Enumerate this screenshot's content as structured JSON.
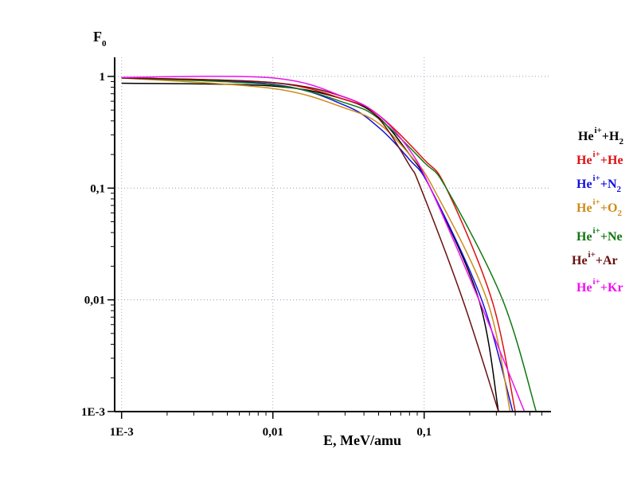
{
  "chart_data": {
    "type": "line",
    "title": "",
    "xlabel": "E, MeV/amu",
    "ylabel": {
      "main": "F",
      "sub": "0"
    },
    "xscale": "log",
    "yscale": "log",
    "xlim": [
      0.00085,
      0.69
    ],
    "ylim": [
      0.001,
      1.5
    ],
    "x_ticks": [
      {
        "v": 0.001,
        "label": "1E-3"
      },
      {
        "v": 0.01,
        "label": "0,01"
      },
      {
        "v": 0.1,
        "label": "0,1"
      }
    ],
    "y_ticks": [
      {
        "v": 1,
        "label": "1"
      },
      {
        "v": 0.1,
        "label": "0,1"
      },
      {
        "v": 0.01,
        "label": "0,01"
      },
      {
        "v": 0.001,
        "label": "1E-3"
      }
    ],
    "grid": true,
    "legend_position": "right",
    "series": [
      {
        "name": "He i+ + H2",
        "ion": "He",
        "charge": "i+",
        "target": "+H",
        "sub": "2",
        "color": "#000000",
        "x": [
          0.001,
          0.01,
          0.03,
          0.05,
          0.08,
          0.11,
          0.23,
          0.31
        ],
        "y": [
          0.87,
          0.82,
          0.62,
          0.43,
          0.2,
          0.1,
          0.01,
          0.001
        ]
      },
      {
        "name": "He i+ + He",
        "ion": "He",
        "charge": "i+",
        "target": "+He",
        "sub": "",
        "color": "#dd1111",
        "x": [
          0.001,
          0.01,
          0.03,
          0.05,
          0.1,
          0.14,
          0.28,
          0.4
        ],
        "y": [
          0.97,
          0.88,
          0.62,
          0.45,
          0.18,
          0.1,
          0.01,
          0.001
        ]
      },
      {
        "name": "He i+ + N2",
        "ion": "He",
        "charge": "i+",
        "target": "+N",
        "sub": "2",
        "color": "#1111dd",
        "x": [
          0.001,
          0.01,
          0.03,
          0.05,
          0.08,
          0.11,
          0.24,
          0.385
        ],
        "y": [
          0.97,
          0.85,
          0.55,
          0.35,
          0.18,
          0.1,
          0.01,
          0.001
        ]
      },
      {
        "name": "He i+ + O2",
        "ion": "He",
        "charge": "i+",
        "target": "+O",
        "sub": "2",
        "color": "#d08a1a",
        "x": [
          0.001,
          0.01,
          0.03,
          0.05,
          0.08,
          0.115,
          0.26,
          0.37
        ],
        "y": [
          0.97,
          0.78,
          0.52,
          0.38,
          0.2,
          0.1,
          0.01,
          0.001
        ]
      },
      {
        "name": "He i+ + Ne",
        "ion": "He",
        "charge": "i+",
        "target": "+Ne",
        "sub": "",
        "color": "#117711",
        "x": [
          0.001,
          0.01,
          0.03,
          0.05,
          0.1,
          0.14,
          0.33,
          0.55
        ],
        "y": [
          0.97,
          0.84,
          0.58,
          0.42,
          0.17,
          0.1,
          0.01,
          0.001
        ]
      },
      {
        "name": "He i+ + Ar",
        "ion": "He",
        "charge": "i+",
        "target": "+Ar",
        "sub": "",
        "color": "#6b0f0f",
        "x": [
          0.001,
          0.01,
          0.03,
          0.05,
          0.08,
          0.095,
          0.18,
          0.31
        ],
        "y": [
          0.97,
          0.88,
          0.65,
          0.42,
          0.16,
          0.1,
          0.01,
          0.001
        ]
      },
      {
        "name": "He i+ + Kr",
        "ion": "He",
        "charge": "i+",
        "target": "+Kr",
        "sub": "",
        "color": "#ee11ee",
        "x": [
          0.001,
          0.01,
          0.03,
          0.05,
          0.08,
          0.11,
          0.23,
          0.46
        ],
        "y": [
          0.98,
          0.97,
          0.65,
          0.45,
          0.22,
          0.1,
          0.01,
          0.001
        ]
      }
    ]
  }
}
